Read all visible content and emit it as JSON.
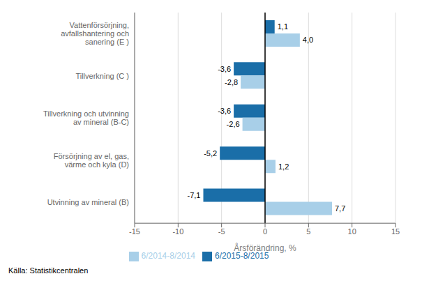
{
  "chart_data": {
    "type": "bar",
    "orientation": "horizontal",
    "categories": [
      "Vattenförsörjning, avfallshantering och sanering (E )",
      "Tillverkning (C )",
      "Tillverkning och utvinning av mineral (B-C)",
      "Försörjning av el, gas, värme och kyla (D)",
      "Utvinning av mineral  (B)"
    ],
    "series": [
      {
        "name": "6/2015-8/2015",
        "color": "#1A6EA8",
        "values": [
          1.1,
          -3.6,
          -3.6,
          -5.2,
          -7.1
        ],
        "value_labels": [
          "1,1",
          "-3,6",
          "-3,6",
          "-5,2",
          "-7,1"
        ]
      },
      {
        "name": "6/2014-8/2014",
        "color": "#A8CFE8",
        "values": [
          4.0,
          -2.8,
          -2.6,
          1.2,
          7.7
        ],
        "value_labels": [
          "4,0",
          "-2,8",
          "-2,6",
          "1,2",
          "7,7"
        ]
      }
    ],
    "xlabel": "Årsförändring, %",
    "xlim": [
      -15,
      15
    ],
    "xticks": [
      -15,
      -10,
      -5,
      0,
      5,
      10,
      15
    ],
    "grid": true,
    "data_labels": true,
    "legend": "bottom",
    "annotations": [
      "Källa: Statistikcentralen"
    ]
  }
}
